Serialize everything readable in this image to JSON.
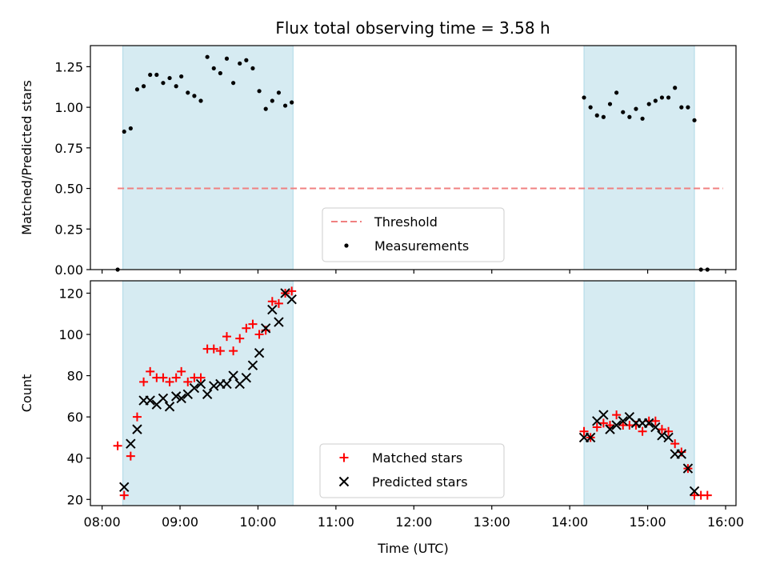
{
  "colors": {
    "threshold": "#f08080",
    "measurement": "#000000",
    "matched": "#ff0000",
    "predicted": "#000000",
    "shade": "#add8e6"
  },
  "chart_data": [
    {
      "type": "scatter",
      "title": "Flux total observing time = 3.58 h",
      "xlabel": "",
      "ylabel": "Matched/Predicted stars",
      "ylim": [
        0,
        1.38
      ],
      "xlim": [
        "07:51",
        "16:08"
      ],
      "y_ticks": [
        "0.00",
        "0.25",
        "0.50",
        "0.75",
        "1.00",
        "1.25"
      ],
      "x_ticks": [
        "08:00",
        "09:00",
        "10:00",
        "11:00",
        "12:00",
        "13:00",
        "14:00",
        "15:00",
        "16:00"
      ],
      "x_tick_labels_shown": false,
      "shaded_intervals": [
        [
          "08:16",
          "10:27"
        ],
        [
          "14:11",
          "15:36"
        ]
      ],
      "legend": {
        "position": "bottom-center",
        "entries": [
          "Threshold",
          "Measurements"
        ]
      },
      "series": [
        {
          "name": "Threshold",
          "kind": "dashed-line",
          "points": [
            [
              "08:12",
              0.5
            ],
            [
              "15:58",
              0.5
            ]
          ]
        },
        {
          "name": "Measurements",
          "kind": "dots",
          "points": [
            [
              "08:12",
              0.0
            ],
            [
              "08:17",
              0.85
            ],
            [
              "08:22",
              0.87
            ],
            [
              "08:27",
              1.11
            ],
            [
              "08:32",
              1.13
            ],
            [
              "08:37",
              1.2
            ],
            [
              "08:42",
              1.2
            ],
            [
              "08:47",
              1.15
            ],
            [
              "08:52",
              1.18
            ],
            [
              "08:57",
              1.13
            ],
            [
              "09:01",
              1.19
            ],
            [
              "09:06",
              1.09
            ],
            [
              "09:11",
              1.07
            ],
            [
              "09:16",
              1.04
            ],
            [
              "09:21",
              1.31
            ],
            [
              "09:26",
              1.24
            ],
            [
              "09:31",
              1.21
            ],
            [
              "09:36",
              1.3
            ],
            [
              "09:41",
              1.15
            ],
            [
              "09:46",
              1.27
            ],
            [
              "09:51",
              1.29
            ],
            [
              "09:56",
              1.24
            ],
            [
              "10:01",
              1.1
            ],
            [
              "10:06",
              0.99
            ],
            [
              "10:11",
              1.04
            ],
            [
              "10:16",
              1.09
            ],
            [
              "10:21",
              1.01
            ],
            [
              "10:26",
              1.03
            ],
            [
              "14:11",
              1.06
            ],
            [
              "14:16",
              1.0
            ],
            [
              "14:21",
              0.95
            ],
            [
              "14:26",
              0.94
            ],
            [
              "14:31",
              1.02
            ],
            [
              "14:36",
              1.09
            ],
            [
              "14:41",
              0.97
            ],
            [
              "14:46",
              0.94
            ],
            [
              "14:51",
              0.99
            ],
            [
              "14:56",
              0.93
            ],
            [
              "15:01",
              1.02
            ],
            [
              "15:06",
              1.04
            ],
            [
              "15:11",
              1.06
            ],
            [
              "15:16",
              1.06
            ],
            [
              "15:21",
              1.12
            ],
            [
              "15:26",
              1.0
            ],
            [
              "15:31",
              1.0
            ],
            [
              "15:36",
              0.92
            ],
            [
              "15:41",
              0.0
            ],
            [
              "15:46",
              0.0
            ]
          ]
        }
      ]
    },
    {
      "type": "scatter",
      "title": "",
      "xlabel": "Time (UTC)",
      "ylabel": "Count",
      "ylim": [
        17,
        126
      ],
      "xlim": [
        "07:51",
        "16:08"
      ],
      "y_ticks": [
        "20",
        "40",
        "60",
        "80",
        "100",
        "120"
      ],
      "x_ticks": [
        "08:00",
        "09:00",
        "10:00",
        "11:00",
        "12:00",
        "13:00",
        "14:00",
        "15:00",
        "16:00"
      ],
      "x_tick_labels_shown": true,
      "shaded_intervals": [
        [
          "08:16",
          "10:27"
        ],
        [
          "14:11",
          "15:36"
        ]
      ],
      "legend": {
        "position": "bottom-center",
        "entries": [
          "Matched stars",
          "Predicted stars"
        ]
      },
      "series": [
        {
          "name": "Matched stars",
          "kind": "plus",
          "points": [
            [
              "08:12",
              46
            ],
            [
              "08:17",
              22
            ],
            [
              "08:22",
              41
            ],
            [
              "08:27",
              60
            ],
            [
              "08:32",
              77
            ],
            [
              "08:37",
              82
            ],
            [
              "08:42",
              79
            ],
            [
              "08:47",
              79
            ],
            [
              "08:52",
              77
            ],
            [
              "08:57",
              79
            ],
            [
              "09:01",
              82
            ],
            [
              "09:06",
              77
            ],
            [
              "09:11",
              79
            ],
            [
              "09:16",
              79
            ],
            [
              "09:21",
              93
            ],
            [
              "09:26",
              93
            ],
            [
              "09:31",
              92
            ],
            [
              "09:36",
              99
            ],
            [
              "09:41",
              92
            ],
            [
              "09:46",
              98
            ],
            [
              "09:51",
              103
            ],
            [
              "09:56",
              105
            ],
            [
              "10:01",
              100
            ],
            [
              "10:06",
              102
            ],
            [
              "10:11",
              116
            ],
            [
              "10:16",
              115
            ],
            [
              "10:21",
              120
            ],
            [
              "10:26",
              121
            ],
            [
              "14:11",
              53
            ],
            [
              "14:16",
              50
            ],
            [
              "14:21",
              55
            ],
            [
              "14:26",
              57
            ],
            [
              "14:31",
              56
            ],
            [
              "14:36",
              61
            ],
            [
              "14:41",
              56
            ],
            [
              "14:46",
              56
            ],
            [
              "14:51",
              56
            ],
            [
              "14:56",
              53
            ],
            [
              "15:01",
              58
            ],
            [
              "15:06",
              58
            ],
            [
              "15:11",
              54
            ],
            [
              "15:16",
              53
            ],
            [
              "15:21",
              47
            ],
            [
              "15:26",
              43
            ],
            [
              "15:31",
              35
            ],
            [
              "15:36",
              22
            ],
            [
              "15:41",
              22
            ],
            [
              "15:46",
              22
            ]
          ]
        },
        {
          "name": "Predicted stars",
          "kind": "cross",
          "points": [
            [
              "08:17",
              26
            ],
            [
              "08:22",
              47
            ],
            [
              "08:27",
              54
            ],
            [
              "08:32",
              68
            ],
            [
              "08:37",
              68
            ],
            [
              "08:42",
              66
            ],
            [
              "08:47",
              69
            ],
            [
              "08:52",
              65
            ],
            [
              "08:57",
              70
            ],
            [
              "09:01",
              69
            ],
            [
              "09:06",
              71
            ],
            [
              "09:11",
              74
            ],
            [
              "09:16",
              76
            ],
            [
              "09:21",
              71
            ],
            [
              "09:26",
              75
            ],
            [
              "09:31",
              76
            ],
            [
              "09:36",
              76
            ],
            [
              "09:41",
              80
            ],
            [
              "09:46",
              76
            ],
            [
              "09:51",
              79
            ],
            [
              "09:56",
              85
            ],
            [
              "10:01",
              91
            ],
            [
              "10:06",
              103
            ],
            [
              "10:11",
              112
            ],
            [
              "10:16",
              106
            ],
            [
              "10:21",
              120
            ],
            [
              "10:26",
              117
            ],
            [
              "14:11",
              50
            ],
            [
              "14:16",
              50
            ],
            [
              "14:21",
              58
            ],
            [
              "14:26",
              61
            ],
            [
              "14:31",
              54
            ],
            [
              "14:36",
              56
            ],
            [
              "14:41",
              58
            ],
            [
              "14:46",
              60
            ],
            [
              "14:51",
              57
            ],
            [
              "14:56",
              57
            ],
            [
              "15:01",
              57
            ],
            [
              "15:06",
              55
            ],
            [
              "15:11",
              51
            ],
            [
              "15:16",
              50
            ],
            [
              "15:21",
              42
            ],
            [
              "15:26",
              42
            ],
            [
              "15:31",
              35
            ],
            [
              "15:36",
              24
            ]
          ]
        }
      ]
    }
  ]
}
